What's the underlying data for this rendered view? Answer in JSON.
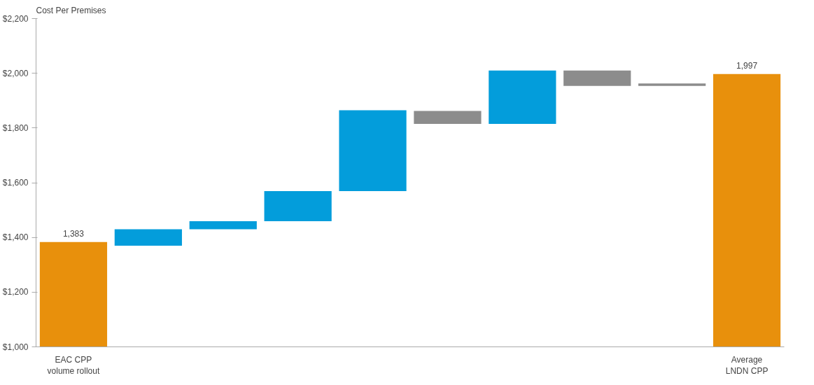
{
  "chart_data": {
    "type": "bar",
    "ylabel": "Cost Per Premises",
    "categories": [
      "EAC CPP\nvolume rollout",
      null,
      null,
      null,
      null,
      null,
      null,
      null,
      null,
      "Average\nLNDN CPP"
    ],
    "base": [
      null,
      1370,
      1430,
      1459,
      1569,
      1862,
      1815,
      2010,
      1963,
      null
    ],
    "values": [
      1383,
      60,
      29,
      110,
      296,
      -47,
      195,
      -56,
      -9,
      1997
    ],
    "colors": [
      "#e8900c",
      "#039ddb",
      "#039ddb",
      "#039ddb",
      "#039ddb",
      "#8c8c8c",
      "#039ddb",
      "#8c8c8c",
      "#8c8c8c",
      "#e8900c"
    ],
    "value_labels": [
      "1,383",
      null,
      null,
      null,
      null,
      null,
      null,
      null,
      null,
      "1,997"
    ],
    "ylim": [
      1000,
      2200
    ],
    "yticks": [
      {
        "value": 1000,
        "label": "$1,000"
      },
      {
        "value": 1200,
        "label": "$1,200"
      },
      {
        "value": 1400,
        "label": "$1,400"
      },
      {
        "value": 1600,
        "label": "$1,600"
      },
      {
        "value": 1800,
        "label": "$1,800"
      },
      {
        "value": 2000,
        "label": "$2,000"
      },
      {
        "value": 2200,
        "label": "$2,200"
      }
    ],
    "grid": false
  }
}
